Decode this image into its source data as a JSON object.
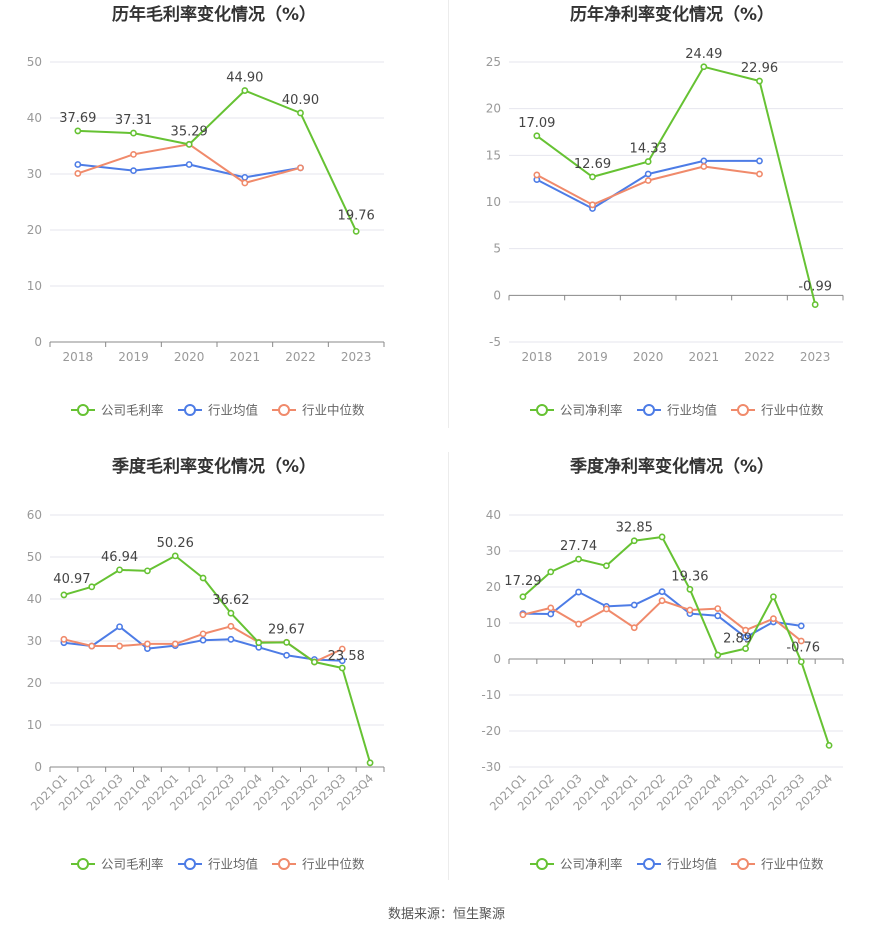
{
  "source": "数据来源：恒生聚源",
  "colors": {
    "company": "#66c233",
    "average": "#4d7ce6",
    "median": "#f08a6b",
    "grid": "#e6e6ee",
    "axis": "#888888",
    "tick": "#999999",
    "title": "#333333",
    "label": "#444444"
  },
  "chart_data": [
    {
      "type": "line",
      "title": "历年毛利率变化情况（%）",
      "categories": [
        "2018",
        "2019",
        "2020",
        "2021",
        "2022",
        "2023"
      ],
      "ylim": [
        0,
        50
      ],
      "yticks": [
        0,
        10,
        20,
        30,
        40,
        50
      ],
      "grid": true,
      "legend_position": "bottom",
      "series": [
        {
          "name": "公司毛利率",
          "color_key": "company",
          "values": [
            37.69,
            37.31,
            35.29,
            44.9,
            40.9,
            19.76
          ],
          "data_labels": [
            "37.69",
            "37.31",
            "35.29",
            "44.90",
            "40.90",
            "19.76"
          ]
        },
        {
          "name": "行业均值",
          "color_key": "average",
          "values": [
            31.7,
            30.6,
            31.7,
            29.4,
            31.1,
            null
          ]
        },
        {
          "name": "行业中位数",
          "color_key": "median",
          "values": [
            30.1,
            33.5,
            35.3,
            28.4,
            31.1,
            null
          ]
        }
      ]
    },
    {
      "type": "line",
      "title": "历年净利率变化情况（%）",
      "categories": [
        "2018",
        "2019",
        "2020",
        "2021",
        "2022",
        "2023"
      ],
      "ylim": [
        -5,
        25
      ],
      "yticks": [
        -5,
        0,
        5,
        10,
        15,
        20,
        25
      ],
      "grid": true,
      "legend_position": "bottom",
      "series": [
        {
          "name": "公司净利率",
          "color_key": "company",
          "values": [
            17.09,
            12.69,
            14.33,
            24.49,
            22.96,
            -0.99
          ],
          "data_labels": [
            "17.09",
            "12.69",
            "14.33",
            "24.49",
            "22.96",
            "-0.99"
          ]
        },
        {
          "name": "行业均值",
          "color_key": "average",
          "values": [
            12.4,
            9.3,
            13.0,
            14.4,
            14.4,
            null
          ]
        },
        {
          "name": "行业中位数",
          "color_key": "median",
          "values": [
            12.9,
            9.7,
            12.3,
            13.8,
            13.0,
            null
          ]
        }
      ]
    },
    {
      "type": "line",
      "title": "季度毛利率变化情况（%）",
      "categories": [
        "2021Q1",
        "2021Q2",
        "2021Q3",
        "2021Q4",
        "2022Q1",
        "2022Q2",
        "2022Q3",
        "2022Q4",
        "2023Q1",
        "2023Q2",
        "2023Q3",
        "2023Q4"
      ],
      "ylim": [
        0,
        60
      ],
      "yticks": [
        0,
        10,
        20,
        30,
        40,
        50,
        60
      ],
      "grid": true,
      "legend_position": "bottom",
      "series": [
        {
          "name": "公司毛利率",
          "color_key": "company",
          "values": [
            40.97,
            42.9,
            46.94,
            46.7,
            50.26,
            45.0,
            36.62,
            29.6,
            29.67,
            25.0,
            23.58,
            1.0
          ],
          "data_labels": [
            "40.97",
            "",
            "46.94",
            "",
            "50.26",
            "",
            "36.62",
            "",
            "29.67",
            "",
            "23.58",
            ""
          ]
        },
        {
          "name": "行业均值",
          "color_key": "average",
          "values": [
            29.6,
            28.8,
            33.4,
            28.2,
            28.9,
            30.2,
            30.4,
            28.5,
            26.6,
            25.6,
            25.3,
            null
          ]
        },
        {
          "name": "行业中位数",
          "color_key": "median",
          "values": [
            30.4,
            28.8,
            28.8,
            29.3,
            29.3,
            31.7,
            33.5,
            29.7,
            29.7,
            25.0,
            28.1,
            null
          ]
        }
      ]
    },
    {
      "type": "line",
      "title": "季度净利率变化情况（%）",
      "categories": [
        "2021Q1",
        "2021Q2",
        "2021Q3",
        "2021Q4",
        "2022Q1",
        "2022Q2",
        "2022Q3",
        "2022Q4",
        "2023Q1",
        "2023Q2",
        "2023Q3",
        "2023Q4"
      ],
      "ylim": [
        -30,
        40
      ],
      "yticks": [
        -30,
        -20,
        -10,
        0,
        10,
        20,
        30,
        40
      ],
      "grid": true,
      "legend_position": "bottom",
      "series": [
        {
          "name": "公司净利率",
          "color_key": "company",
          "values": [
            17.29,
            24.2,
            27.74,
            25.9,
            32.85,
            33.9,
            19.36,
            1.1,
            2.89,
            17.3,
            -0.76,
            -24.0
          ],
          "data_labels": [
            "17.29",
            "",
            "27.74",
            "",
            "32.85",
            "",
            "19.36",
            "",
            "2.89",
            "",
            "-0.76",
            ""
          ]
        },
        {
          "name": "行业均值",
          "color_key": "average",
          "values": [
            12.6,
            12.5,
            18.6,
            14.6,
            15.0,
            18.7,
            12.6,
            12.0,
            6.0,
            10.3,
            9.2,
            null
          ]
        },
        {
          "name": "行业中位数",
          "color_key": "median",
          "values": [
            12.3,
            14.2,
            9.7,
            13.9,
            8.7,
            16.2,
            13.6,
            14.0,
            8.0,
            11.2,
            5.0,
            null
          ]
        }
      ]
    }
  ]
}
